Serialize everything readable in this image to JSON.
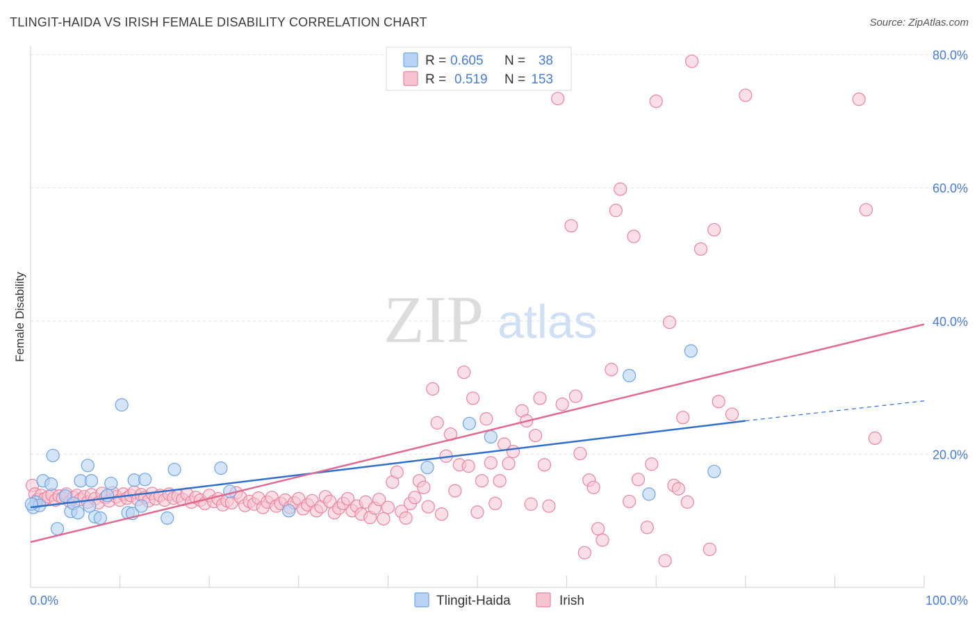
{
  "title": "TLINGIT-HAIDA VS IRISH FEMALE DISABILITY CORRELATION CHART",
  "source": "Source: ZipAtlas.com",
  "watermark": {
    "zip": "ZIP",
    "atlas": "atlas"
  },
  "colors": {
    "tlingit": "#6fa3e0",
    "tlingit_fill": "#b8d3f3",
    "tlingit_line": "#2f6fcb",
    "irish": "#e8839f",
    "irish_fill": "#f7c4d2",
    "irish_line": "#e0698f",
    "tick_label": "#4a7cc9",
    "grid": "#e3e3e3"
  },
  "legend": {
    "rows": [
      {
        "r_label": "R =",
        "r_value": "0.605",
        "n_label": "N =",
        "n_value": "38"
      },
      {
        "r_label": "R =",
        "r_value": "0.519",
        "n_label": "N =",
        "n_value": "153"
      }
    ]
  },
  "bottom_legend": [
    "Tlingit-Haida",
    "Irish"
  ],
  "chart_data": {
    "type": "scatter",
    "title": "TLINGIT-HAIDA VS IRISH FEMALE DISABILITY CORRELATION CHART",
    "xlabel": "",
    "ylabel": "Female Disability",
    "xlim": [
      0,
      100
    ],
    "ylim": [
      0,
      82
    ],
    "x_tick_labels": [
      "0.0%",
      "100.0%"
    ],
    "y_ticks": [
      20,
      40,
      60,
      80
    ],
    "y_tick_labels": [
      "20.0%",
      "40.0%",
      "60.0%",
      "80.0%"
    ],
    "grid": "horizontal dashed",
    "legend_position": "top-center",
    "series": [
      {
        "name": "Tlingit-Haida",
        "R": 0.605,
        "N": 38,
        "trend": {
          "x0": 0,
          "y0": 12.0,
          "x1": 80,
          "y1": 25.0,
          "dashed_to_x": 100,
          "dashed_to_y": 28.0
        },
        "points": [
          [
            0.3,
            12.0
          ],
          [
            0.6,
            12.8
          ],
          [
            1.0,
            12.3
          ],
          [
            1.4,
            16.0
          ],
          [
            2.3,
            15.5
          ],
          [
            2.5,
            19.8
          ],
          [
            3.0,
            8.8
          ],
          [
            3.9,
            13.7
          ],
          [
            4.5,
            11.4
          ],
          [
            4.8,
            12.6
          ],
          [
            5.3,
            11.2
          ],
          [
            5.6,
            16.0
          ],
          [
            6.4,
            18.3
          ],
          [
            6.6,
            12.2
          ],
          [
            6.8,
            16.0
          ],
          [
            7.2,
            10.6
          ],
          [
            7.8,
            10.4
          ],
          [
            8.6,
            13.8
          ],
          [
            9.0,
            15.6
          ],
          [
            10.2,
            27.4
          ],
          [
            10.9,
            11.2
          ],
          [
            11.4,
            11.1
          ],
          [
            11.6,
            16.1
          ],
          [
            12.4,
            12.2
          ],
          [
            12.8,
            16.2
          ],
          [
            15.3,
            10.4
          ],
          [
            16.1,
            17.7
          ],
          [
            21.3,
            17.9
          ],
          [
            22.3,
            14.4
          ],
          [
            28.9,
            11.5
          ],
          [
            44.4,
            18.0
          ],
          [
            49.1,
            24.6
          ],
          [
            51.5,
            22.6
          ],
          [
            67.0,
            31.8
          ],
          [
            69.2,
            14.0
          ],
          [
            73.9,
            35.5
          ],
          [
            76.5,
            17.4
          ],
          [
            0.1,
            12.5
          ]
        ]
      },
      {
        "name": "Irish",
        "R": 0.519,
        "N": 153,
        "trend": {
          "x0": 0,
          "y0": 6.8,
          "x1": 100,
          "y1": 39.5
        },
        "points": [
          [
            0.2,
            15.3
          ],
          [
            0.5,
            14.0
          ],
          [
            0.8,
            13.2
          ],
          [
            1.2,
            13.8
          ],
          [
            1.6,
            13.3
          ],
          [
            2.0,
            13.6
          ],
          [
            2.4,
            13.9
          ],
          [
            2.8,
            13.1
          ],
          [
            3.2,
            13.7
          ],
          [
            3.6,
            13.4
          ],
          [
            4.0,
            14.0
          ],
          [
            4.4,
            12.9
          ],
          [
            4.8,
            13.5
          ],
          [
            5.2,
            13.8
          ],
          [
            5.6,
            13.2
          ],
          [
            6.0,
            13.6
          ],
          [
            6.4,
            12.8
          ],
          [
            6.8,
            13.9
          ],
          [
            7.2,
            13.3
          ],
          [
            7.6,
            12.7
          ],
          [
            8.0,
            14.1
          ],
          [
            8.4,
            13.5
          ],
          [
            8.8,
            13.0
          ],
          [
            9.2,
            14.2
          ],
          [
            9.6,
            13.6
          ],
          [
            10.0,
            13.1
          ],
          [
            10.4,
            14.0
          ],
          [
            10.8,
            13.4
          ],
          [
            11.2,
            13.8
          ],
          [
            11.6,
            14.3
          ],
          [
            12.0,
            13.2
          ],
          [
            12.4,
            13.9
          ],
          [
            12.8,
            13.5
          ],
          [
            13.2,
            13.0
          ],
          [
            13.6,
            14.1
          ],
          [
            14.0,
            13.3
          ],
          [
            14.5,
            13.8
          ],
          [
            15.0,
            13.1
          ],
          [
            15.5,
            14.0
          ],
          [
            16.0,
            13.4
          ],
          [
            16.5,
            13.7
          ],
          [
            17.0,
            13.2
          ],
          [
            17.5,
            14.0
          ],
          [
            18.0,
            12.8
          ],
          [
            18.5,
            13.5
          ],
          [
            19.0,
            13.1
          ],
          [
            19.5,
            12.6
          ],
          [
            20.0,
            13.8
          ],
          [
            20.5,
            12.9
          ],
          [
            21.0,
            13.3
          ],
          [
            21.5,
            12.4
          ],
          [
            22.0,
            13.0
          ],
          [
            22.5,
            12.7
          ],
          [
            23.0,
            14.2
          ],
          [
            23.5,
            13.5
          ],
          [
            24.0,
            12.3
          ],
          [
            24.5,
            12.9
          ],
          [
            25.0,
            12.5
          ],
          [
            25.5,
            13.4
          ],
          [
            26.0,
            12.0
          ],
          [
            26.5,
            12.8
          ],
          [
            27.0,
            13.5
          ],
          [
            27.5,
            12.2
          ],
          [
            28.0,
            12.6
          ],
          [
            28.5,
            13.1
          ],
          [
            29.0,
            12.0
          ],
          [
            29.5,
            12.7
          ],
          [
            30.0,
            13.3
          ],
          [
            30.5,
            11.8
          ],
          [
            31.0,
            12.4
          ],
          [
            31.5,
            13.0
          ],
          [
            32.0,
            11.5
          ],
          [
            32.5,
            12.1
          ],
          [
            33.0,
            13.6
          ],
          [
            33.5,
            12.9
          ],
          [
            34.0,
            11.2
          ],
          [
            34.5,
            11.9
          ],
          [
            35.0,
            12.6
          ],
          [
            35.5,
            13.3
          ],
          [
            36.0,
            11.5
          ],
          [
            36.5,
            12.2
          ],
          [
            37.0,
            11.0
          ],
          [
            37.5,
            12.8
          ],
          [
            38.0,
            10.5
          ],
          [
            38.5,
            11.9
          ],
          [
            39.0,
            13.2
          ],
          [
            39.5,
            10.3
          ],
          [
            40.0,
            12.0
          ],
          [
            40.5,
            15.8
          ],
          [
            41.0,
            17.3
          ],
          [
            41.5,
            11.4
          ],
          [
            42.0,
            10.4
          ],
          [
            42.5,
            12.6
          ],
          [
            43.0,
            13.5
          ],
          [
            43.5,
            16.0
          ],
          [
            44.0,
            15.0
          ],
          [
            44.5,
            12.1
          ],
          [
            45.0,
            29.8
          ],
          [
            45.5,
            24.7
          ],
          [
            46.0,
            11.0
          ],
          [
            46.5,
            19.7
          ],
          [
            47.0,
            23.0
          ],
          [
            47.5,
            14.5
          ],
          [
            48.0,
            18.4
          ],
          [
            48.5,
            32.3
          ],
          [
            49.0,
            18.2
          ],
          [
            49.5,
            28.4
          ],
          [
            50.0,
            11.3
          ],
          [
            50.5,
            16.0
          ],
          [
            51.0,
            25.3
          ],
          [
            51.5,
            18.7
          ],
          [
            52.0,
            12.6
          ],
          [
            52.5,
            16.0
          ],
          [
            53.0,
            21.5
          ],
          [
            53.5,
            18.6
          ],
          [
            54.0,
            20.4
          ],
          [
            55.0,
            26.5
          ],
          [
            55.5,
            25.0
          ],
          [
            56.0,
            12.5
          ],
          [
            56.5,
            22.8
          ],
          [
            57.0,
            28.4
          ],
          [
            57.5,
            18.4
          ],
          [
            58.0,
            12.2
          ],
          [
            59.0,
            73.4
          ],
          [
            59.5,
            27.5
          ],
          [
            60.5,
            54.3
          ],
          [
            61.0,
            28.7
          ],
          [
            61.5,
            20.1
          ],
          [
            62.0,
            5.2
          ],
          [
            62.5,
            16.1
          ],
          [
            63.0,
            15.0
          ],
          [
            63.5,
            8.8
          ],
          [
            64.0,
            7.1
          ],
          [
            65.0,
            32.7
          ],
          [
            65.5,
            56.6
          ],
          [
            66.0,
            59.8
          ],
          [
            67.0,
            12.9
          ],
          [
            67.5,
            52.7
          ],
          [
            68.0,
            16.2
          ],
          [
            69.0,
            9.0
          ],
          [
            69.5,
            18.5
          ],
          [
            70.0,
            73.0
          ],
          [
            71.0,
            4.0
          ],
          [
            71.5,
            39.8
          ],
          [
            72.0,
            15.3
          ],
          [
            72.5,
            14.8
          ],
          [
            73.0,
            25.5
          ],
          [
            73.5,
            12.8
          ],
          [
            74.0,
            79.0
          ],
          [
            75.0,
            50.8
          ],
          [
            76.0,
            5.7
          ],
          [
            76.5,
            53.7
          ],
          [
            77.0,
            27.9
          ],
          [
            78.5,
            26.0
          ],
          [
            80.0,
            73.9
          ],
          [
            92.7,
            73.3
          ],
          [
            93.5,
            56.7
          ],
          [
            94.5,
            22.4
          ]
        ]
      }
    ]
  }
}
